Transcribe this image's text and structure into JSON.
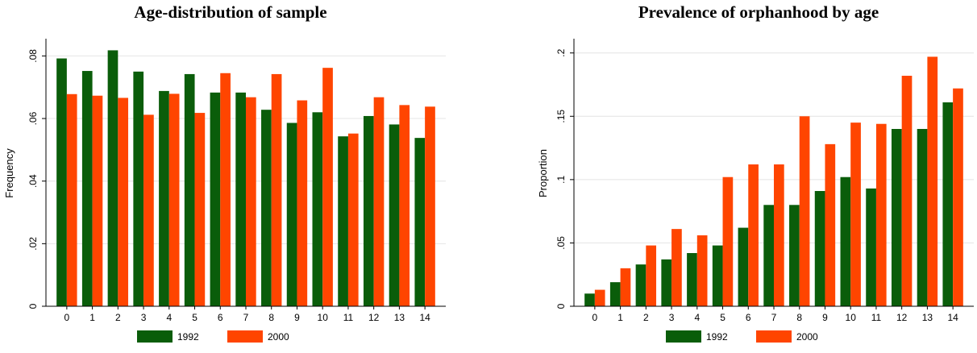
{
  "colors": {
    "s1992": "#0a5d0a",
    "s2000": "#ff4500",
    "grid": "#e4e4e4",
    "axis": "#000000"
  },
  "chart_data": [
    {
      "type": "bar",
      "title": "Age-distribution of sample",
      "ylabel": "Frequency",
      "xlabel": "",
      "categories": [
        "0",
        "1",
        "2",
        "3",
        "4",
        "5",
        "6",
        "7",
        "8",
        "9",
        "10",
        "11",
        "12",
        "13",
        "14"
      ],
      "ylim": [
        0,
        0.085
      ],
      "yticks": [
        0,
        0.02,
        0.04,
        0.06,
        0.08
      ],
      "ytick_labels": [
        "0",
        ".02",
        ".04",
        ".06",
        ".08"
      ],
      "grid": true,
      "legend_position": "bottom",
      "series": [
        {
          "name": "1992",
          "color": "#0a5d0a",
          "values": [
            0.0792,
            0.0752,
            0.0818,
            0.075,
            0.0688,
            0.0742,
            0.0683,
            0.0683,
            0.0628,
            0.0586,
            0.062,
            0.0543,
            0.0608,
            0.0581,
            0.0538
          ]
        },
        {
          "name": "2000",
          "color": "#ff4500",
          "values": [
            0.0678,
            0.0673,
            0.0666,
            0.0612,
            0.0679,
            0.0618,
            0.0745,
            0.0668,
            0.0742,
            0.0658,
            0.0762,
            0.0552,
            0.0668,
            0.0643,
            0.0638
          ]
        }
      ]
    },
    {
      "type": "bar",
      "title": "Prevalence of orphanhood by age",
      "ylabel": "Proportion",
      "xlabel": "",
      "categories": [
        "0",
        "1",
        "2",
        "3",
        "4",
        "5",
        "6",
        "7",
        "8",
        "9",
        "10",
        "11",
        "12",
        "13",
        "14"
      ],
      "ylim": [
        0,
        0.21
      ],
      "yticks": [
        0,
        0.05,
        0.1,
        0.15,
        0.2
      ],
      "ytick_labels": [
        "0",
        ".05",
        ".1",
        ".15",
        ".2"
      ],
      "grid": true,
      "legend_position": "bottom",
      "series": [
        {
          "name": "1992",
          "color": "#0a5d0a",
          "values": [
            0.01,
            0.019,
            0.033,
            0.037,
            0.042,
            0.048,
            0.062,
            0.08,
            0.08,
            0.091,
            0.102,
            0.093,
            0.14,
            0.14,
            0.161
          ]
        },
        {
          "name": "2000",
          "color": "#ff4500",
          "values": [
            0.013,
            0.03,
            0.048,
            0.061,
            0.056,
            0.102,
            0.112,
            0.112,
            0.15,
            0.128,
            0.145,
            0.144,
            0.182,
            0.197,
            0.172
          ]
        }
      ]
    }
  ]
}
